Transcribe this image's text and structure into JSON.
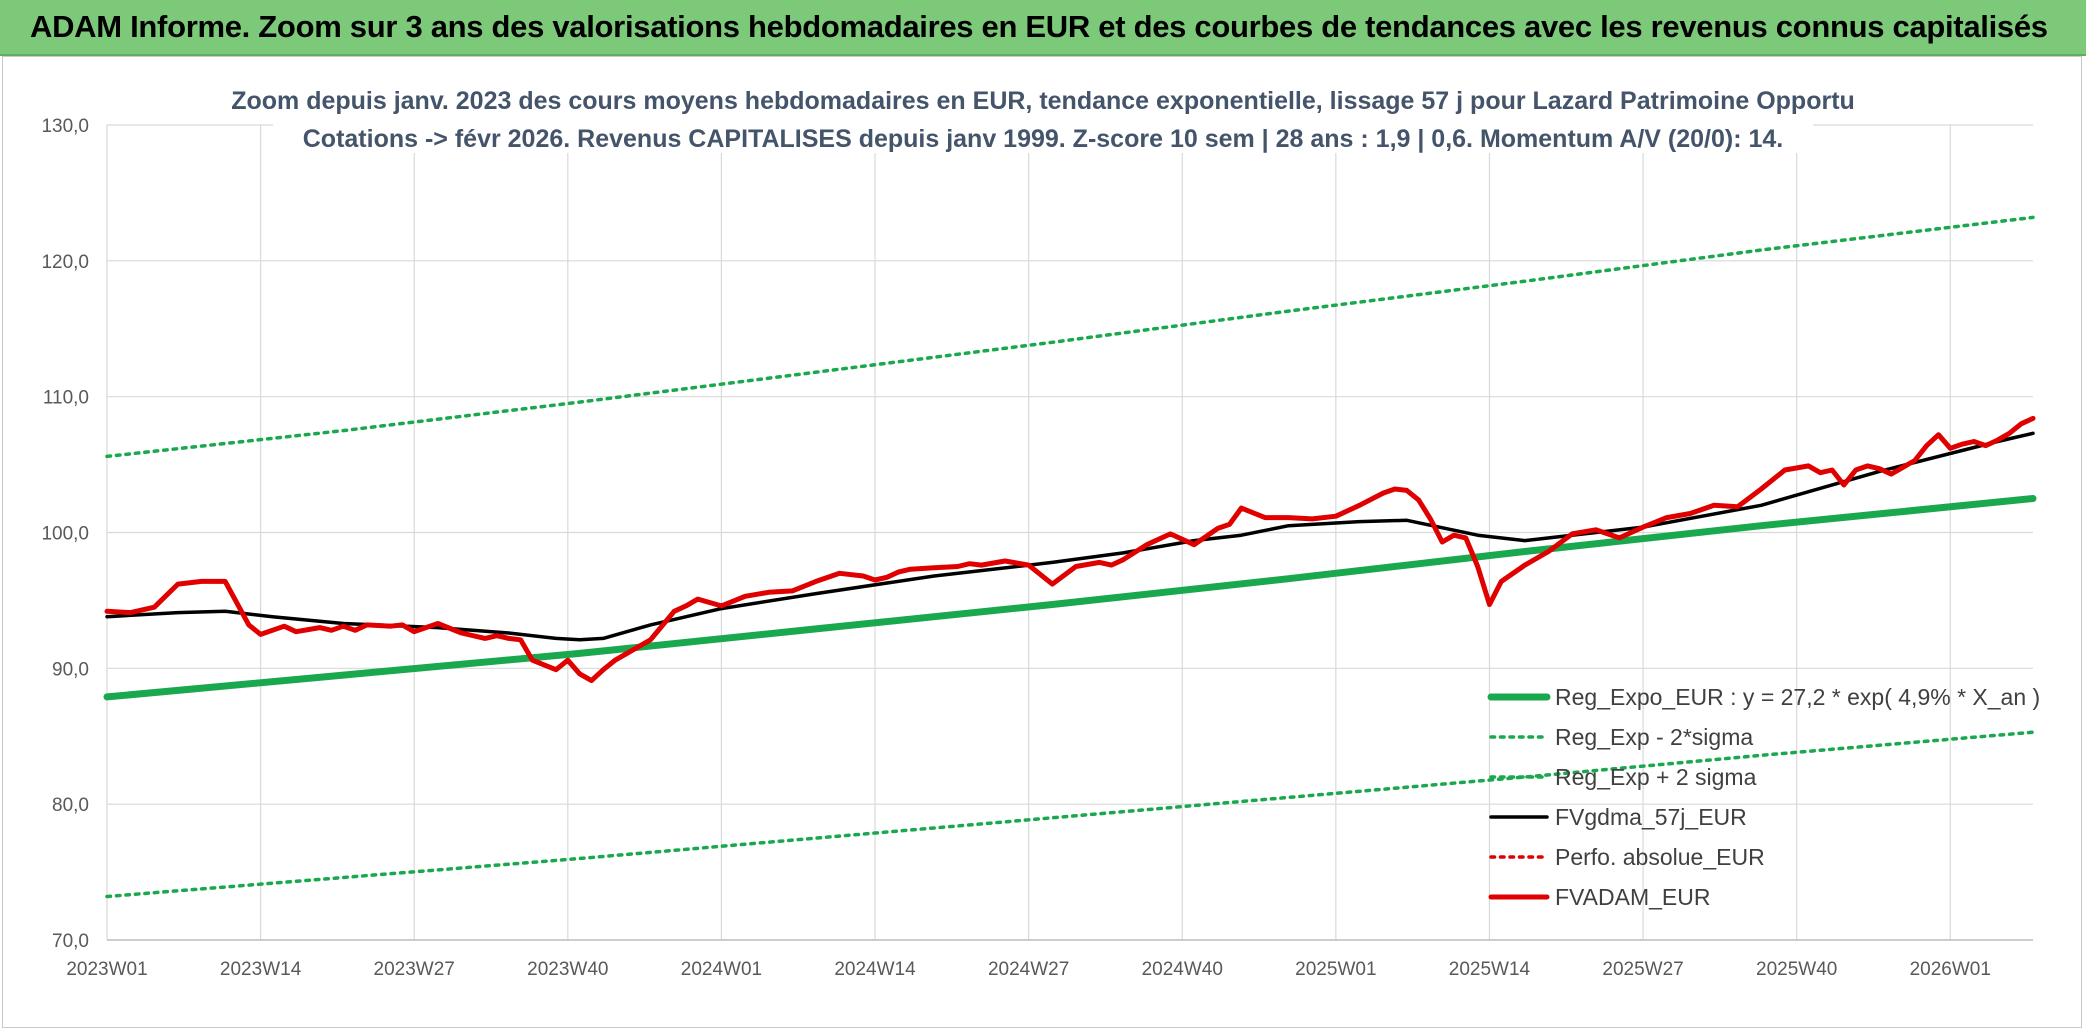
{
  "banner": {
    "title": "ADAM Informe. Zoom sur 3 ans des valorisations hebdomadaires en EUR et des courbes de tendances avec les revenus connus capitalisés"
  },
  "colors": {
    "banner": "#7dc97a",
    "trend": "#1aa84f",
    "sigma": "#1aa84f",
    "fvgdma": "#000000",
    "perfo": "#e00000",
    "fvadam": "#e00000",
    "grid": "#d9d9d9",
    "title": "#44546a"
  },
  "chart_data": {
    "type": "line",
    "title_line1": "Zoom depuis janv. 2023 des cours moyens hebdomadaires en EUR, tendance exponentielle, lissage 57 j pour Lazard Patrimoine Opportu",
    "title_line2": "Cotations -> févr 2026. Revenus CAPITALISES depuis janv 1999. Z-score 10 sem | 28 ans : 1,9 | 0,6. Momentum A/V (20/0): 14.",
    "xlabel": "",
    "ylabel": "",
    "ylim": [
      70,
      130
    ],
    "yticks": [
      "130,0",
      "120,0",
      "110,0",
      "100,0",
      "90,0",
      "80,0",
      "70,0"
    ],
    "xticks": [
      "2023W01",
      "2023W14",
      "2023W27",
      "2023W40",
      "2024W01",
      "2024W14",
      "2024W27",
      "2024W40",
      "2025W01",
      "2025W14",
      "2025W27",
      "2025W40",
      "2026W01"
    ],
    "xtick_weeks": [
      0,
      13,
      26,
      39,
      52,
      65,
      78,
      91,
      104,
      117,
      130,
      143,
      156
    ],
    "week_count": 164,
    "grid": true,
    "legend_position": "bottom-right",
    "series": [
      {
        "name": "Reg_Expo_EUR : y = 27,2 * exp( 4,9% *  X_an )",
        "style": "solid-thick",
        "color": "#1aa84f",
        "x": [
          0,
          20,
          40,
          60,
          80,
          100,
          120,
          140,
          163
        ],
        "y": [
          87.9,
          89.5,
          91.1,
          92.9,
          94.7,
          96.6,
          98.6,
          100.5,
          102.5
        ]
      },
      {
        "name": "Reg_Exp - 2*sigma",
        "style": "dotted",
        "color": "#1aa84f",
        "x": [
          0,
          20,
          40,
          60,
          80,
          100,
          120,
          140,
          163
        ],
        "y": [
          73.2,
          74.6,
          76.0,
          77.5,
          79.0,
          80.5,
          82.0,
          83.6,
          85.3
        ]
      },
      {
        "name": "Reg_Exp + 2 sigma",
        "style": "dotted",
        "color": "#1aa84f",
        "x": [
          0,
          20,
          40,
          60,
          80,
          100,
          120,
          140,
          163
        ],
        "y": [
          105.6,
          107.5,
          109.6,
          111.8,
          114.0,
          116.3,
          118.5,
          120.8,
          123.2
        ]
      },
      {
        "name": "FVgdma_57j_EUR",
        "style": "solid",
        "color": "#000000",
        "x": [
          0,
          6,
          10,
          14,
          20,
          28,
          34,
          38,
          40,
          42,
          46,
          52,
          60,
          70,
          80,
          86,
          92,
          96,
          100,
          106,
          110,
          116,
          120,
          130,
          140,
          150,
          160,
          163
        ],
        "y": [
          93.8,
          94.1,
          94.2,
          93.8,
          93.3,
          93.0,
          92.6,
          92.2,
          92.1,
          92.2,
          93.2,
          94.4,
          95.5,
          96.8,
          97.8,
          98.5,
          99.4,
          99.8,
          100.5,
          100.8,
          100.9,
          99.8,
          99.4,
          100.4,
          102.0,
          104.5,
          106.7,
          107.3
        ]
      },
      {
        "name": "Perfo. absolue_EUR",
        "style": "dotted",
        "color": "#e00000",
        "x": [],
        "y": []
      },
      {
        "name": "FVADAM_EUR",
        "style": "solid-thick",
        "color": "#e00000",
        "x": [
          0,
          2,
          4,
          6,
          8,
          10,
          12,
          13,
          14,
          15,
          16,
          18,
          19,
          20,
          21,
          22,
          24,
          25,
          26,
          28,
          30,
          32,
          33,
          34,
          35,
          36,
          38,
          39,
          40,
          41,
          42,
          43,
          44,
          46,
          48,
          49,
          50,
          52,
          54,
          56,
          58,
          60,
          62,
          64,
          65,
          66,
          67,
          68,
          70,
          72,
          73,
          74,
          76,
          78,
          80,
          82,
          84,
          85,
          86,
          88,
          90,
          92,
          94,
          95,
          96,
          98,
          100,
          102,
          104,
          106,
          108,
          109,
          110,
          111,
          112,
          113,
          114,
          115,
          116,
          117,
          118,
          120,
          122,
          124,
          126,
          128,
          130,
          132,
          134,
          136,
          138,
          140,
          142,
          144,
          145,
          146,
          147,
          148,
          149,
          150,
          151,
          152,
          153,
          154,
          155,
          156,
          157,
          158,
          159,
          160,
          161,
          162,
          163
        ],
        "y": [
          94.2,
          94.1,
          94.5,
          96.2,
          96.4,
          96.4,
          93.2,
          92.5,
          92.8,
          93.1,
          92.7,
          93.0,
          92.8,
          93.1,
          92.8,
          93.2,
          93.1,
          93.2,
          92.7,
          93.3,
          92.6,
          92.2,
          92.4,
          92.2,
          92.1,
          90.6,
          89.9,
          90.6,
          89.6,
          89.1,
          89.9,
          90.6,
          91.1,
          92.1,
          94.2,
          94.6,
          95.1,
          94.6,
          95.3,
          95.6,
          95.7,
          96.4,
          97.0,
          96.8,
          96.5,
          96.7,
          97.1,
          97.3,
          97.4,
          97.5,
          97.7,
          97.6,
          97.9,
          97.6,
          96.2,
          97.5,
          97.8,
          97.6,
          98.0,
          99.1,
          99.9,
          99.1,
          100.3,
          100.6,
          101.8,
          101.1,
          101.1,
          101.0,
          101.2,
          102.0,
          102.9,
          103.2,
          103.1,
          102.4,
          101.0,
          99.3,
          99.8,
          99.6,
          97.5,
          94.7,
          96.4,
          97.6,
          98.6,
          99.9,
          100.2,
          99.6,
          100.4,
          101.1,
          101.4,
          102.0,
          101.9,
          103.2,
          104.6,
          104.9,
          104.4,
          104.6,
          103.5,
          104.6,
          104.9,
          104.7,
          104.3,
          104.8,
          105.3,
          106.4,
          107.2,
          106.2,
          106.5,
          106.7,
          106.4,
          106.8,
          107.3,
          108.0,
          108.4
        ]
      }
    ]
  }
}
